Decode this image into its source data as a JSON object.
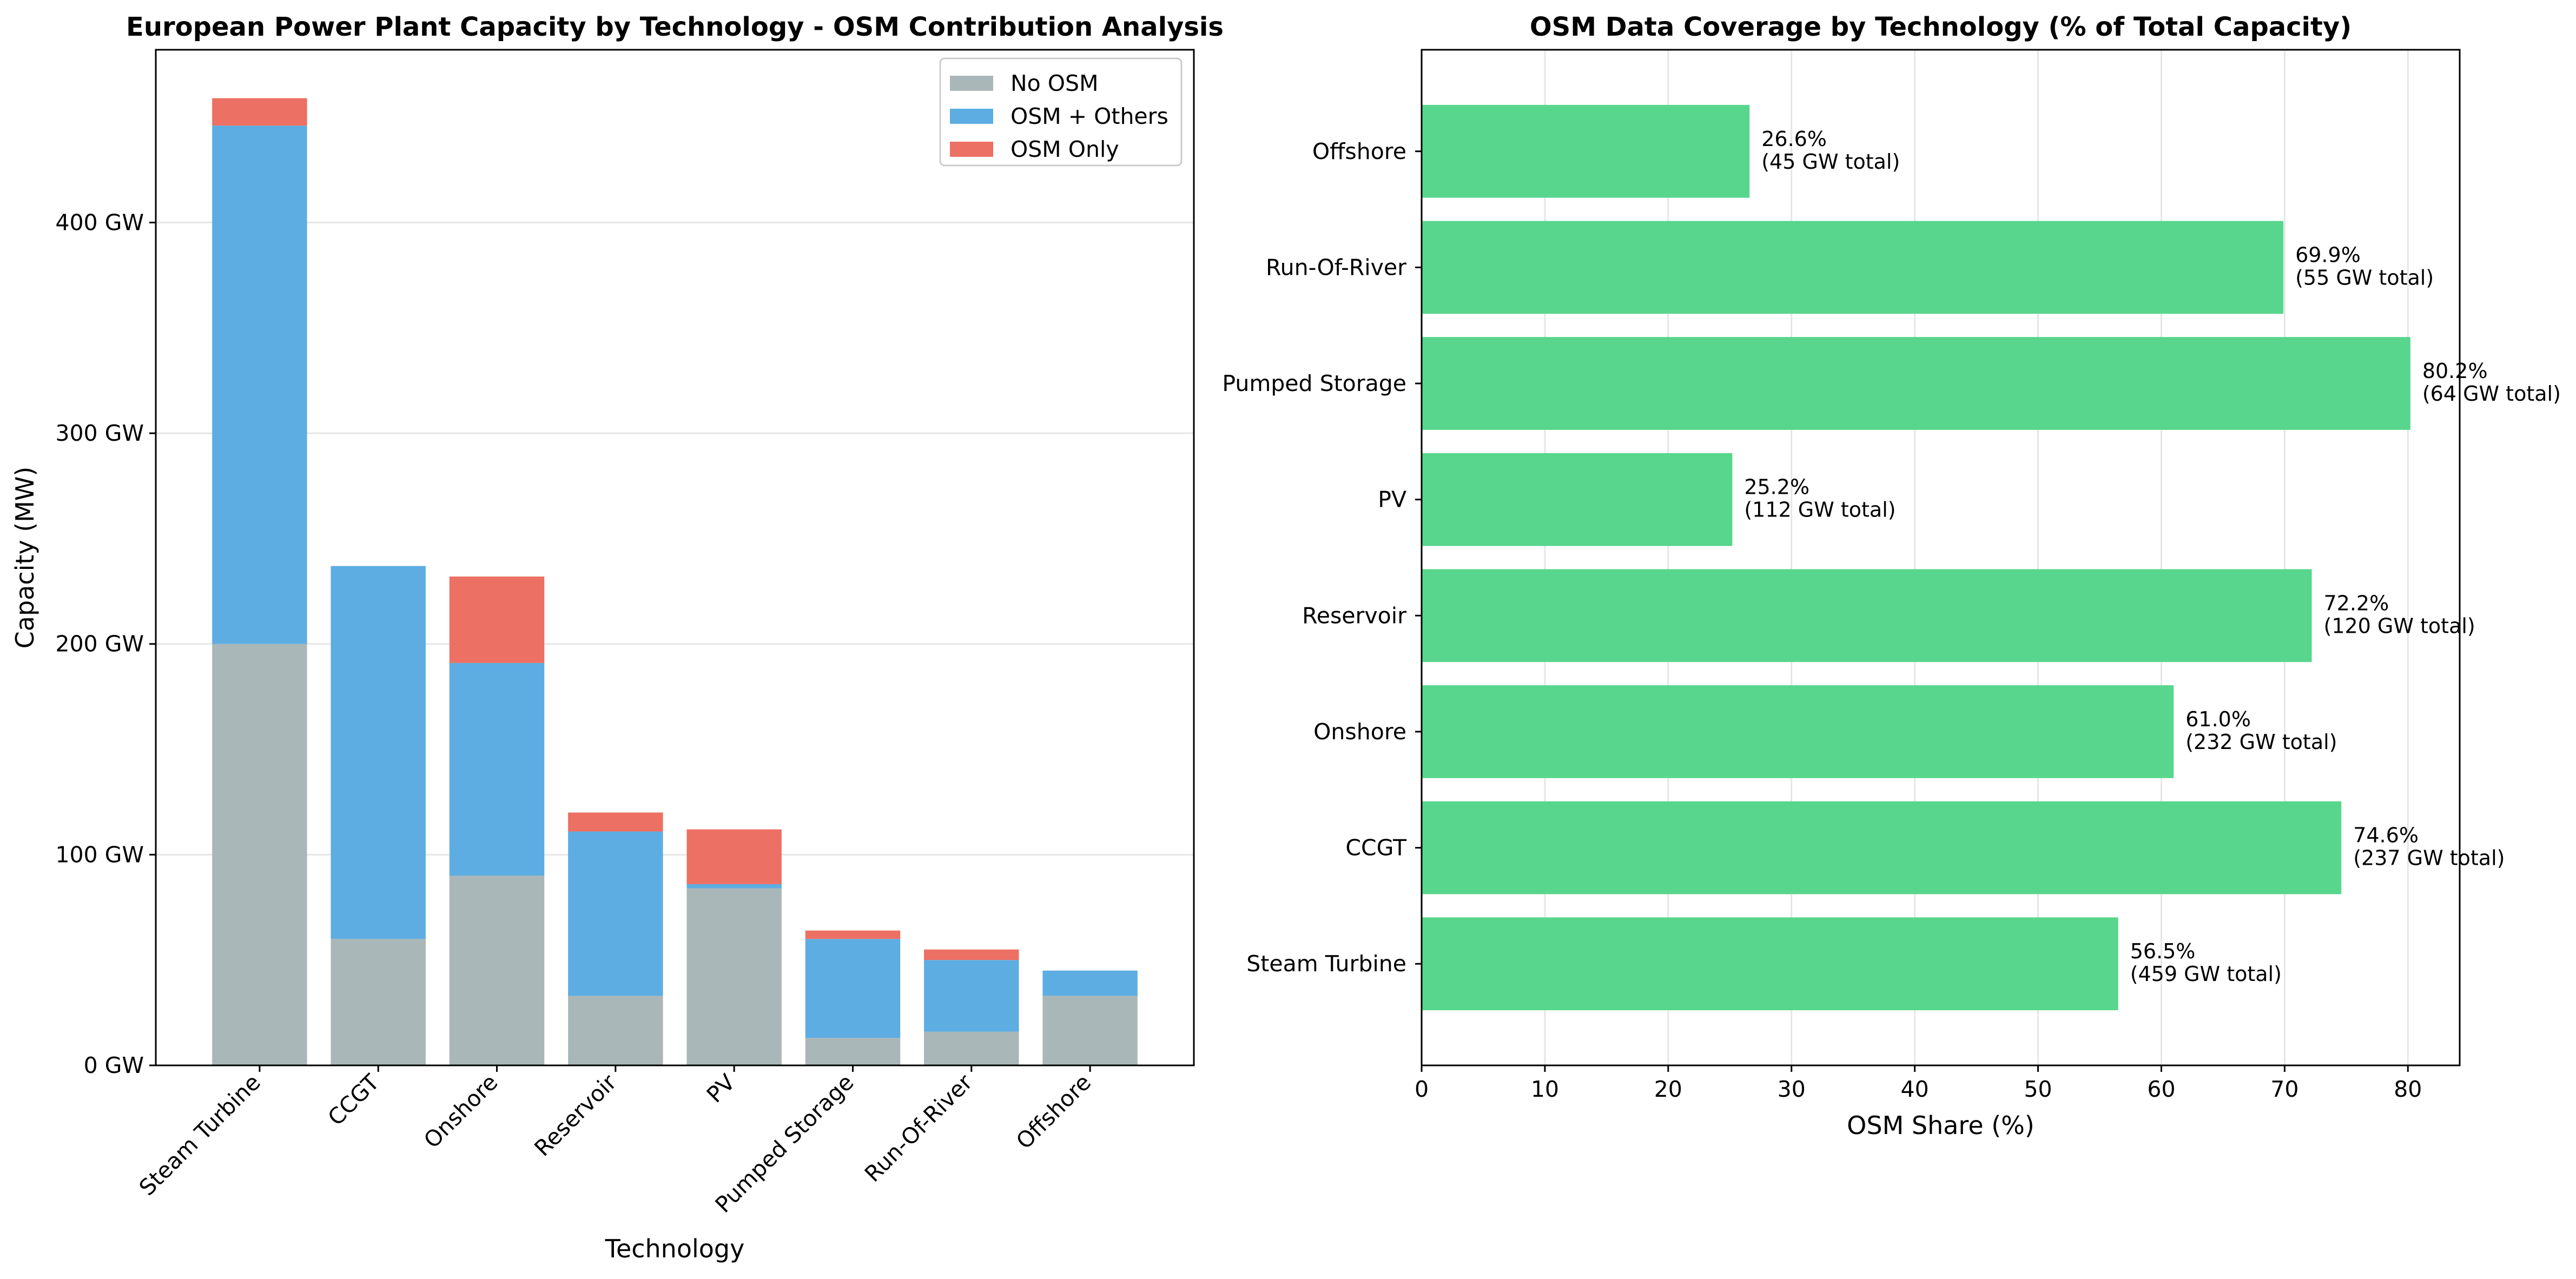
{
  "chart_data": [
    {
      "type": "bar",
      "stacked": true,
      "title": "European Power Plant Capacity by Technology - OSM Contribution Analysis",
      "xlabel": "Technology",
      "ylabel": "Capacity (MW)",
      "categories": [
        "Steam Turbine",
        "CCGT",
        "Onshore",
        "Reservoir",
        "PV",
        "Pumped Storage",
        "Run-Of-River",
        "Offshore"
      ],
      "ylim": [
        0,
        482
      ],
      "yticks": [
        0,
        100,
        200,
        300,
        400
      ],
      "ytick_labels": [
        "0 GW",
        "100 GW",
        "200 GW",
        "300 GW",
        "400 GW"
      ],
      "series": [
        {
          "name": "No OSM",
          "color": "#aab7b8",
          "values": [
            200,
            60,
            90,
            33,
            84,
            13,
            16,
            33
          ]
        },
        {
          "name": "OSM + Others",
          "color": "#5dade2",
          "values": [
            246,
            177,
            101,
            78,
            2,
            47,
            34,
            12
          ]
        },
        {
          "name": "OSM Only",
          "color": "#ec7063",
          "values": [
            13,
            0,
            41,
            9,
            26,
            4,
            5,
            0
          ]
        }
      ],
      "legend": "top-right",
      "grid": true
    },
    {
      "type": "bar",
      "orientation": "horizontal",
      "title": "OSM Data Coverage by Technology (% of Total Capacity)",
      "xlabel": "OSM Share (%)",
      "categories": [
        "Steam Turbine",
        "CCGT",
        "Onshore",
        "Reservoir",
        "PV",
        "Pumped Storage",
        "Run-Of-River",
        "Offshore"
      ],
      "values": [
        56.5,
        74.6,
        61.0,
        72.2,
        25.2,
        80.2,
        69.9,
        26.6
      ],
      "xlim": [
        0,
        84.2
      ],
      "xticks": [
        0,
        10,
        20,
        30,
        40,
        50,
        60,
        70,
        80
      ],
      "color": "#58d68d",
      "annotations": [
        [
          "56.5%",
          "(459 GW total)"
        ],
        [
          "74.6%",
          "(237 GW total)"
        ],
        [
          "61.0%",
          "(232 GW total)"
        ],
        [
          "72.2%",
          "(120 GW total)"
        ],
        [
          "25.2%",
          "(112 GW total)"
        ],
        [
          "80.2%",
          "(64 GW total)"
        ],
        [
          "69.9%",
          "(55 GW total)"
        ],
        [
          "26.6%",
          "(45 GW total)"
        ]
      ],
      "grid": true
    }
  ]
}
